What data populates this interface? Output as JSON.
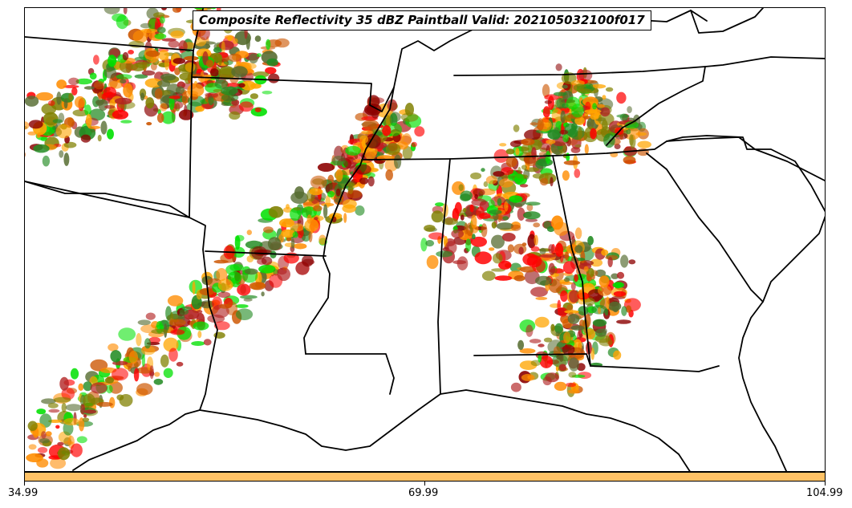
{
  "title": "Composite Reflectivity 35 dBZ Paintball Valid: 202105032100f017",
  "colorbar": {
    "color": "#ffc266",
    "ticks": [
      "34.99",
      "69.99",
      "104.99"
    ]
  },
  "map": {
    "region": "Southeastern United States",
    "land_color": "#ffffff",
    "border_color": "#000000",
    "paintball_colors": [
      "#ff0000",
      "#ff8c00",
      "#228b22",
      "#00e000",
      "#808000",
      "#8b0000",
      "#ffa500",
      "#b22222",
      "#556b2f",
      "#cc5500"
    ]
  }
}
